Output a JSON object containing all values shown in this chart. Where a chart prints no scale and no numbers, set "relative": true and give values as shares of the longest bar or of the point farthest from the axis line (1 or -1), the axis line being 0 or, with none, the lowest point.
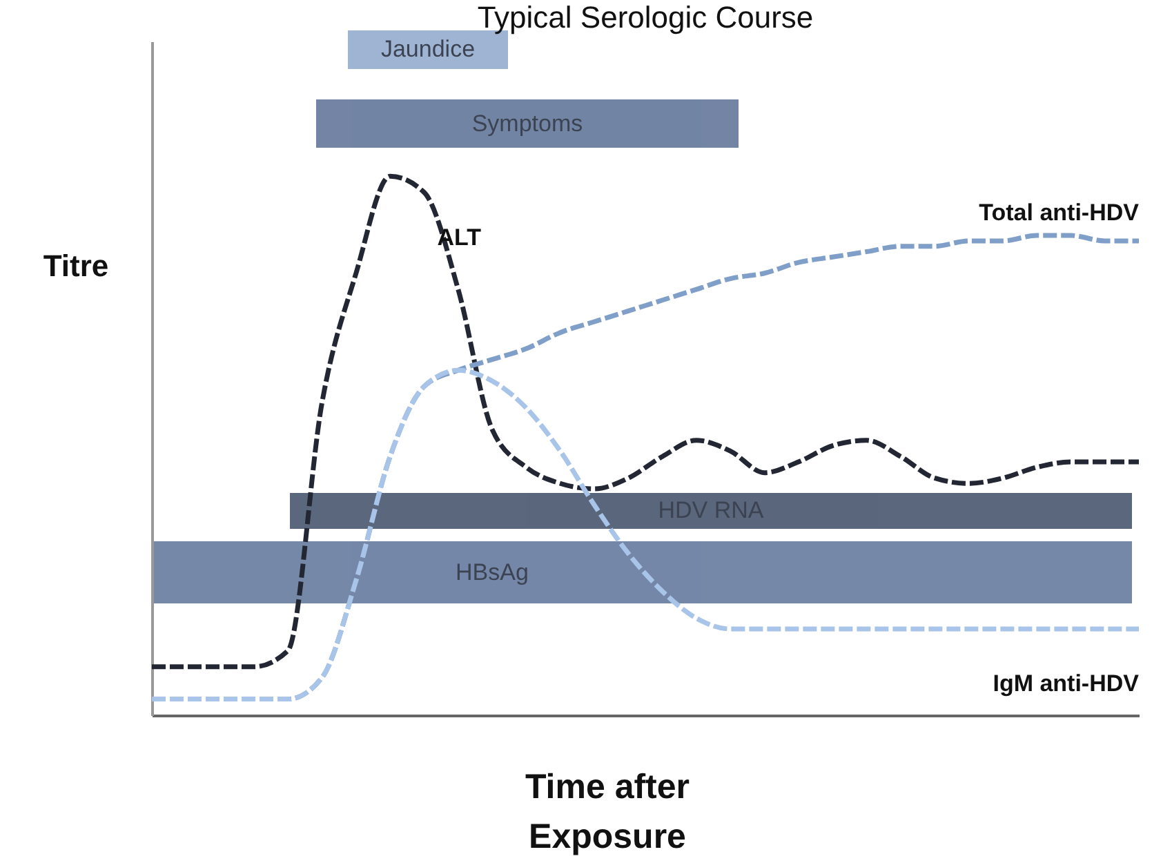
{
  "chart_data": {
    "type": "line",
    "relative": true,
    "title": "Typical Serologic Course",
    "xlabel": "Time after Exposure",
    "ylabel": "Titre",
    "line_style": "dashed",
    "categories": [
      null,
      null,
      null,
      null,
      null,
      null,
      null,
      null,
      null,
      null,
      null,
      null,
      null,
      null,
      null,
      null,
      null,
      null,
      null,
      null,
      null,
      null,
      null,
      null,
      null,
      null,
      null,
      null,
      null,
      null
    ],
    "series": [
      {
        "name": "ALT",
        "color": "#222733",
        "values": [
          0.09,
          0.09,
          0.09,
          0.09,
          0.12,
          0.58,
          0.82,
          1,
          0.97,
          0.79,
          0.53,
          0.46,
          0.43,
          0.42,
          0.44,
          0.48,
          0.51,
          0.49,
          0.45,
          0.47,
          0.5,
          0.51,
          0.48,
          0.44,
          0.43,
          0.44,
          0.46,
          0.47,
          0.47,
          0.47
        ]
      },
      {
        "name": "Total anti-HDV",
        "color": "#7f9fc8",
        "values": [
          0.03,
          0.03,
          0.03,
          0.03,
          0.03,
          0.07,
          0.25,
          0.48,
          0.61,
          0.64,
          0.66,
          0.68,
          0.71,
          0.73,
          0.75,
          0.77,
          0.79,
          0.81,
          0.82,
          0.84,
          0.85,
          0.86,
          0.87,
          0.87,
          0.88,
          0.88,
          0.89,
          0.89,
          0.88,
          0.88
        ]
      },
      {
        "name": "IgM anti-HDV",
        "color": "#a8c4e8",
        "values": [
          0.03,
          0.03,
          0.03,
          0.03,
          0.03,
          0.07,
          0.25,
          0.48,
          0.61,
          0.64,
          0.62,
          0.57,
          0.49,
          0.39,
          0.3,
          0.23,
          0.18,
          0.16,
          0.16,
          0.16,
          0.16,
          0.16,
          0.16,
          0.16,
          0.16,
          0.16,
          0.16,
          0.16,
          0.16,
          0.16
        ]
      }
    ],
    "annotations": [
      "Jaundice",
      "Symptoms",
      "HDV RNA",
      "HBsAg"
    ]
  }
}
